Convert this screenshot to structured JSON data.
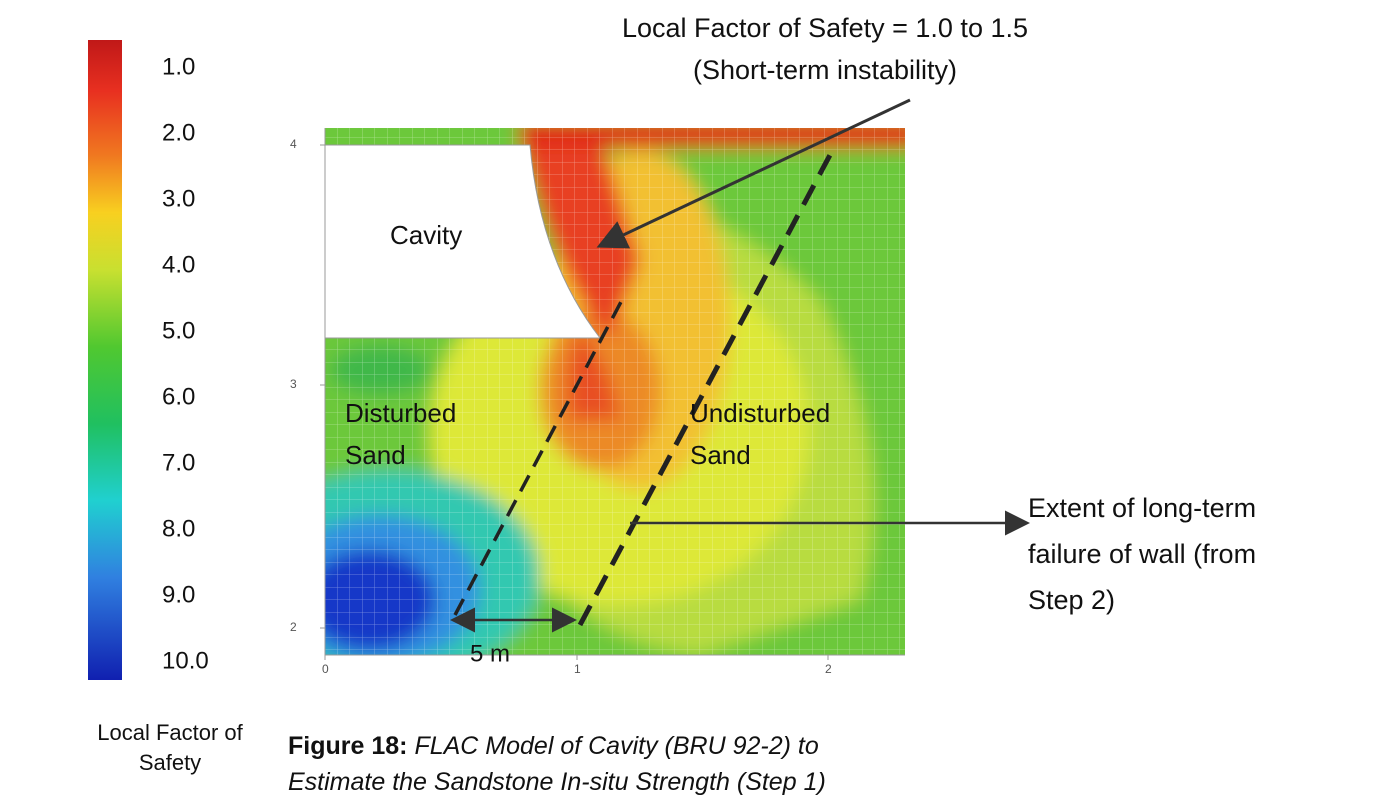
{
  "colorbar": {
    "labels": [
      "1.0",
      "2.0",
      "3.0",
      "4.0",
      "5.0",
      "6.0",
      "7.0",
      "8.0",
      "9.0",
      "10.0"
    ],
    "title": "Local Factor of Safety"
  },
  "plot": {
    "xticks": [
      "0",
      "1",
      "2"
    ],
    "yticks": [
      "2",
      "3",
      "4"
    ],
    "regions": [
      "Cavity",
      "Disturbed",
      "Sand",
      "Undisturbed",
      "Sand"
    ],
    "dimension": "5 m"
  },
  "annotations": {
    "top": [
      "Local Factor of Safety = 1.0 to 1.5",
      "(Short-term instability)"
    ],
    "right": [
      "Extent of long-term",
      "failure of wall (from",
      "Step 2)"
    ]
  },
  "caption": {
    "label": "Figure 18:",
    "text": "FLAC Model of Cavity (BRU 92-2) to Estimate the Sandstone In-situ Strength (Step 1)"
  }
}
